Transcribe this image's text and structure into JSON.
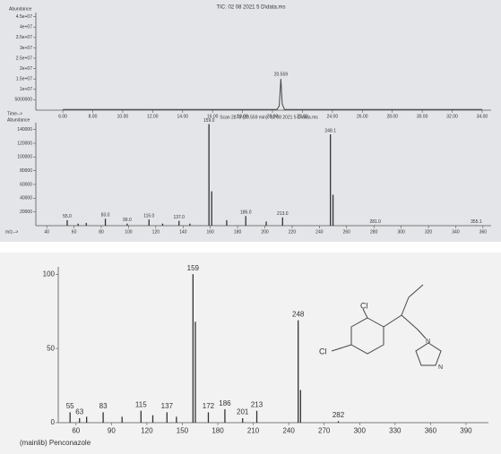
{
  "chart_data": [
    {
      "type": "line",
      "title": "TIC: 02 08 2021 5 D\\data.ms",
      "y_label": "Abundance",
      "x_label": "Time-->",
      "x": [
        6,
        20.3,
        20.45,
        20.559,
        20.65,
        20.8,
        34
      ],
      "values": [
        300000,
        300000,
        2000000,
        15000000,
        3000000,
        300000,
        300000
      ],
      "color": "#444444",
      "xlim": [
        4.2,
        34.6
      ],
      "ylim": [
        0,
        47000000
      ],
      "xticks": [
        {
          "value": 6,
          "label": "6.00"
        },
        {
          "value": 8,
          "label": "8.00"
        },
        {
          "value": 10,
          "label": "10.00"
        },
        {
          "value": 12,
          "label": "12.00"
        },
        {
          "value": 14,
          "label": "14.00"
        },
        {
          "value": 16,
          "label": "16.00"
        },
        {
          "value": 18,
          "label": "18.00"
        },
        {
          "value": 20,
          "label": "20.00"
        },
        {
          "value": 22,
          "label": "22.00"
        },
        {
          "value": 24,
          "label": "24.00"
        },
        {
          "value": 26,
          "label": "26.00"
        },
        {
          "value": 28,
          "label": "28.00"
        },
        {
          "value": 30,
          "label": "30.00"
        },
        {
          "value": 32,
          "label": "32.00"
        },
        {
          "value": 34,
          "label": "34.00"
        }
      ],
      "yticks": [
        {
          "value": 5000000,
          "label": "5000000"
        },
        {
          "value": 10000000,
          "label": "1e+07"
        },
        {
          "value": 15000000,
          "label": "1.5e+07"
        },
        {
          "value": 20000000,
          "label": "2e+07"
        },
        {
          "value": 25000000,
          "label": "2.5e+07"
        },
        {
          "value": 30000000,
          "label": "3e+07"
        },
        {
          "value": 35000000,
          "label": "3.5e+07"
        },
        {
          "value": 40000000,
          "label": "4e+07"
        },
        {
          "value": 45000000,
          "label": "4.5e+07"
        }
      ],
      "peak_label_index": 3
    },
    {
      "type": "bar",
      "title": "Scan 2873 (20.559 min): 02 08 2021 5 D\\data.ms",
      "y_label": "Abundance",
      "x_label": "m/z-->",
      "x": [
        55,
        63,
        69,
        83,
        99,
        115,
        125,
        137,
        145,
        159,
        161,
        172,
        186,
        201,
        213,
        248.1,
        250,
        281,
        355.1
      ],
      "values": [
        8000,
        3000,
        4000,
        10000,
        3000,
        9000,
        3000,
        7000,
        3000,
        148000,
        50000,
        8000,
        14000,
        6000,
        12000,
        133000,
        45000,
        500,
        500
      ],
      "x_labels": [
        "55.0",
        null,
        null,
        "83.0",
        "99.0",
        "115.0",
        null,
        "137.0",
        null,
        "159.0",
        null,
        null,
        "186.0",
        null,
        "213.0",
        "248.1",
        null,
        "281.0",
        "355.1"
      ],
      "color": "#333333",
      "xlim": [
        32,
        366
      ],
      "ylim": [
        0,
        150000
      ],
      "xticks": [
        40,
        60,
        80,
        100,
        120,
        140,
        160,
        180,
        200,
        220,
        240,
        260,
        280,
        300,
        320,
        340,
        360
      ],
      "yticks": [
        20000,
        40000,
        60000,
        80000,
        100000,
        120000,
        140000
      ]
    },
    {
      "type": "bar",
      "footer": "(mainlib) Penconazole",
      "x": [
        55,
        63,
        69,
        83,
        99,
        115,
        125,
        137,
        145,
        159,
        161,
        172,
        186,
        201,
        213,
        248,
        250,
        282
      ],
      "values": [
        7,
        3,
        4,
        7,
        4,
        8,
        5,
        7,
        4,
        100,
        68,
        7,
        9,
        3,
        8,
        69,
        22,
        1
      ],
      "x_labels": [
        "55",
        "63",
        null,
        "83",
        null,
        "115",
        null,
        "137",
        null,
        "159",
        null,
        "172",
        "186",
        "201",
        "213",
        "248",
        null,
        "282"
      ],
      "color": "#333333",
      "xlim": [
        45,
        409
      ],
      "ylim": [
        0,
        105
      ],
      "xticks": [
        60,
        90,
        120,
        150,
        180,
        210,
        240,
        270,
        300,
        330,
        360,
        390
      ],
      "yticks": [
        0,
        50,
        100
      ],
      "structure_labels": [
        "Cl",
        "Cl",
        "N",
        "N"
      ]
    }
  ]
}
